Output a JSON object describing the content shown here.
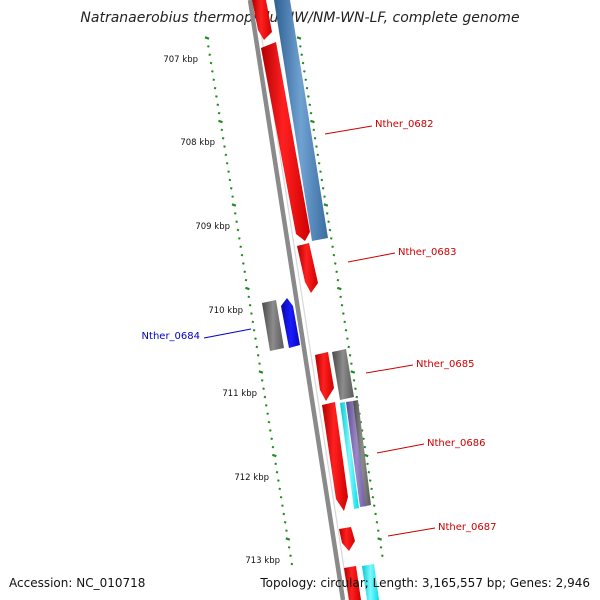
{
  "title": "Natranaerobius thermophilus JW/NM-WN-LF, complete genome",
  "footer": {
    "accession": "Accession: NC_010718",
    "summary": "Topology: circular; Length: 3,165,557 bp; Genes: 2,946"
  },
  "colors": {
    "forward_cds": "#ff1a1a",
    "reverse_cds": "#1414ee",
    "blast_hit": "#4a86c0",
    "other_feature": "#707070",
    "label_forward": "#cc0000",
    "label_reverse": "#0000cc",
    "tick": "#228b22",
    "backbone": "#8a8a8a"
  },
  "scale_labels": [
    "707 kbp",
    "708 kbp",
    "709 kbp",
    "710 kbp",
    "711 kbp",
    "712 kbp",
    "713 kbp"
  ],
  "genes": [
    {
      "name": "Nther_0682",
      "strand": "forward"
    },
    {
      "name": "Nther_0683",
      "strand": "forward"
    },
    {
      "name": "Nther_0684",
      "strand": "reverse"
    },
    {
      "name": "Nther_0685",
      "strand": "forward"
    },
    {
      "name": "Nther_0686",
      "strand": "forward"
    },
    {
      "name": "Nther_0687",
      "strand": "forward"
    }
  ]
}
